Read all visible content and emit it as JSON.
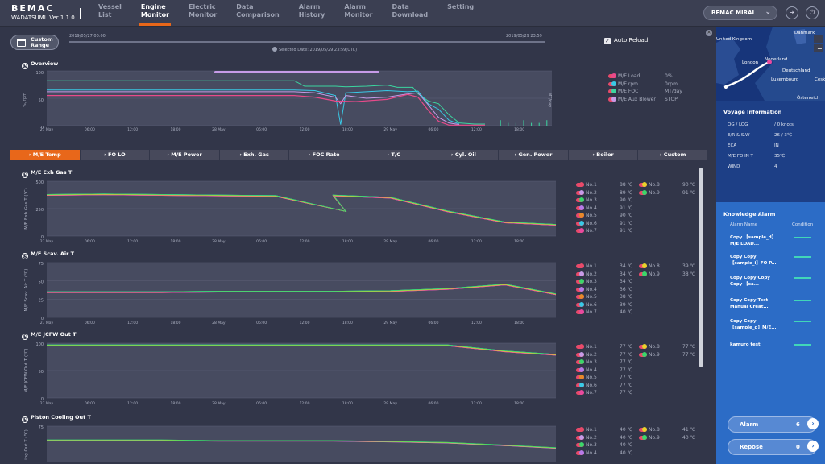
{
  "header": {
    "brand": "BEMAC",
    "product": "WADATSUMI",
    "version": "Ver 1.1.0",
    "nav": [
      "Vessel\nList",
      "Engine\nMonitor",
      "Electric\nMonitor",
      "Data\nComparison",
      "Alarm\nHistory",
      "Alarm\nMonitor",
      "Data\nDownload",
      "Setting"
    ],
    "active_nav": 1,
    "vessel": "BEMAC MIRAI"
  },
  "range": {
    "button": "Custom Range",
    "start": "2019/05/27 00:00",
    "end": "2019/05/29 23:59",
    "selected": "Selected Date: 2019/05/29 23:59(UTC)",
    "auto_reload": "Auto Reload"
  },
  "overview": {
    "title": "Overview",
    "ylabel_left": "%, rpm",
    "ylabel_right": "MT/day",
    "yleft": [
      100,
      50,
      0
    ],
    "yright": [
      60,
      30,
      0
    ],
    "xticks": [
      "27 May",
      "06:00",
      "12:00",
      "18:00",
      "28 May",
      "06:00",
      "12:00",
      "18:00",
      "29 May",
      "06:00",
      "12:00",
      "18:00"
    ],
    "legend": [
      {
        "label": "M/E Load",
        "value": "0%",
        "color": "#e84a8a"
      },
      {
        "label": "M/E rpm",
        "value": "0rpm",
        "color": "#39c9e6"
      },
      {
        "label": "M/E FOC",
        "value": "MT/day",
        "color": "#3bd6a0"
      },
      {
        "label": "M/E Aux Blower",
        "value": "STOP",
        "color": "#c79be8"
      }
    ]
  },
  "tabs": [
    "› M/E Temp",
    "› FO LO",
    "› M/E Power",
    "› Exh. Gas",
    "› FOC Rate",
    "› T/C",
    "› Cyl. Oil",
    "› Gen. Power",
    "› Boiler",
    "› Custom"
  ],
  "active_tab": 0,
  "panels": [
    {
      "title": "M/E Exh Gas T",
      "ylabel": "M/E Exh Gas T (℃)",
      "yticks": [
        "500",
        "250",
        "0"
      ],
      "xticks": [
        "27 May",
        "06:00",
        "12:00",
        "18:00",
        "28 May",
        "06:00",
        "12:00",
        "18:00",
        "29 May",
        "06:00",
        "12:00",
        "18:00",
        "30 May"
      ],
      "left": [
        {
          "no": "No.1",
          "v": "88 ℃",
          "c": "#e84a6a"
        },
        {
          "no": "No.2",
          "v": "89 ℃",
          "c": "#c79be8"
        },
        {
          "no": "No.3",
          "v": "90 ℃",
          "c": "#3bd66a"
        },
        {
          "no": "No.4",
          "v": "91 ℃",
          "c": "#b77be8"
        },
        {
          "no": "No.5",
          "v": "90 ℃",
          "c": "#e8892a"
        },
        {
          "no": "No.6",
          "v": "91 ℃",
          "c": "#39c9e6"
        },
        {
          "no": "No.7",
          "v": "91 ℃",
          "c": "#e84aa0"
        }
      ],
      "right": [
        {
          "no": "No.8",
          "v": "90 ℃",
          "c": "#e8d22a"
        },
        {
          "no": "No.9",
          "v": "91 ℃",
          "c": "#3bd66a"
        }
      ]
    },
    {
      "title": "M/E Scav. Air T",
      "ylabel": "M/E Scav. Air T (℃)",
      "yticks": [
        "75",
        "50",
        "25",
        "0"
      ],
      "xticks": [
        "27 May",
        "06:00",
        "12:00",
        "18:00",
        "28 May",
        "06:00",
        "12:00",
        "18:00",
        "29 May",
        "06:00",
        "12:00",
        "18:00",
        "30 May"
      ],
      "left": [
        {
          "no": "No.1",
          "v": "34 ℃",
          "c": "#e84a6a"
        },
        {
          "no": "No.2",
          "v": "34 ℃",
          "c": "#c79be8"
        },
        {
          "no": "No.3",
          "v": "34 ℃",
          "c": "#3bd66a"
        },
        {
          "no": "No.4",
          "v": "36 ℃",
          "c": "#b77be8"
        },
        {
          "no": "No.5",
          "v": "38 ℃",
          "c": "#e8892a"
        },
        {
          "no": "No.6",
          "v": "39 ℃",
          "c": "#39c9e6"
        },
        {
          "no": "No.7",
          "v": "40 ℃",
          "c": "#e84aa0"
        }
      ],
      "right": [
        {
          "no": "No.8",
          "v": "39 ℃",
          "c": "#e8d22a"
        },
        {
          "no": "No.9",
          "v": "38 ℃",
          "c": "#3bd66a"
        }
      ]
    },
    {
      "title": "M/E JCFW Out T",
      "ylabel": "M/E JCFW Out T (℃)",
      "yticks": [
        "100",
        "50",
        "0"
      ],
      "xticks": [
        "27 May",
        "06:00",
        "12:00",
        "18:00",
        "28 May",
        "06:00",
        "12:00",
        "18:00",
        "29 May",
        "06:00",
        "12:00",
        "18:00",
        "30 May"
      ],
      "left": [
        {
          "no": "No.1",
          "v": "77 ℃",
          "c": "#e84a6a"
        },
        {
          "no": "No.2",
          "v": "77 ℃",
          "c": "#c79be8"
        },
        {
          "no": "No.3",
          "v": "77 ℃",
          "c": "#3bd66a"
        },
        {
          "no": "No.4",
          "v": "77 ℃",
          "c": "#b77be8"
        },
        {
          "no": "No.5",
          "v": "77 ℃",
          "c": "#e8892a"
        },
        {
          "no": "No.6",
          "v": "77 ℃",
          "c": "#39c9e6"
        },
        {
          "no": "No.7",
          "v": "77 ℃",
          "c": "#e84aa0"
        }
      ],
      "right": [
        {
          "no": "No.8",
          "v": "77 ℃",
          "c": "#e8d22a"
        },
        {
          "no": "No.9",
          "v": "77 ℃",
          "c": "#3bd66a"
        }
      ]
    },
    {
      "title": "Piston Cooling Out T",
      "ylabel": "ing Out T (℃)",
      "yticks": [
        "75",
        "50"
      ],
      "xticks": [],
      "left": [
        {
          "no": "No.1",
          "v": "40 ℃",
          "c": "#e84a6a"
        },
        {
          "no": "No.2",
          "v": "40 ℃",
          "c": "#c79be8"
        },
        {
          "no": "No.3",
          "v": "40 ℃",
          "c": "#3bd66a"
        },
        {
          "no": "No.4",
          "v": "40 ℃",
          "c": "#b77be8"
        }
      ],
      "right": [
        {
          "no": "No.8",
          "v": "41 ℃",
          "c": "#e8d22a"
        },
        {
          "no": "No.9",
          "v": "40 ℃",
          "c": "#3bd66a"
        }
      ]
    }
  ],
  "map": {
    "labels": [
      "Danmark",
      "United Kingdom",
      "London",
      "Nederland",
      "Deutschland",
      "Luxembourg",
      "Česko",
      "Österreich"
    ]
  },
  "voyage": {
    "title": "Voyage Information",
    "rows": [
      [
        "OG / LOG",
        "/ 0 knots"
      ],
      [
        "E/R & S.W",
        "26 / 3℃"
      ],
      [
        "ECA",
        "IN"
      ],
      [
        "M/E FO IN T",
        "35℃"
      ],
      [
        "WIND",
        "4"
      ]
    ]
  },
  "knowledge": {
    "title": "Knowledge Alarm",
    "col1": "Alarm Name",
    "col2": "Condition",
    "items": [
      "Copy 【sample_d】M/E LOAD...",
      "Copy Copy 【sample_i】FO P...",
      "Copy Copy Copy Copy 【sa...",
      "Copy Copy Test Manual Creat...",
      "Copy Copy 【sample_d】M/E...",
      "kamuro test"
    ]
  },
  "buttons": {
    "alarm_label": "Alarm",
    "alarm_count": "6",
    "repose_label": "Repose",
    "repose_count": "0"
  }
}
